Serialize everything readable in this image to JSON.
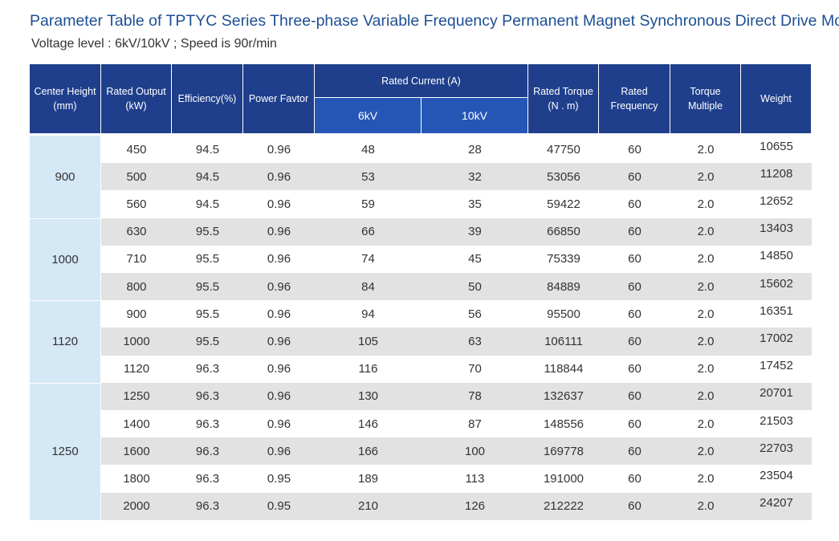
{
  "header": {
    "title": "Parameter Table of TPTYC Series Three-phase Variable Frequency Permanent Magnet Synchronous Direct Drive Motor",
    "subtitle": "Voltage level : 6kV/10kV ; Speed is 90r/min"
  },
  "table": {
    "columns": [
      [
        "Center  Height",
        "(mm)"
      ],
      [
        "Rated Output",
        "(kW)"
      ],
      [
        "Efficiency(%)"
      ],
      [
        "Power Favtor"
      ],
      [
        "Rated Current (A)"
      ],
      [
        "Rated Torque",
        "(N . m)"
      ],
      [
        "Rated",
        "Frequency"
      ],
      [
        "Torque",
        "Multiple"
      ],
      [
        "Weight"
      ]
    ],
    "subcolumns": [
      "6kV",
      "10kV"
    ],
    "groups": [
      {
        "center_height": "900",
        "rows": [
          [
            "450",
            "94.5",
            "0.96",
            "48",
            "28",
            "47750",
            "60",
            "2.0",
            "10655"
          ],
          [
            "500",
            "94.5",
            "0.96",
            "53",
            "32",
            "53056",
            "60",
            "2.0",
            "11208"
          ],
          [
            "560",
            "94.5",
            "0.96",
            "59",
            "35",
            "59422",
            "60",
            "2.0",
            "12652"
          ]
        ]
      },
      {
        "center_height": "1000",
        "rows": [
          [
            "630",
            "95.5",
            "0.96",
            "66",
            "39",
            "66850",
            "60",
            "2.0",
            "13403"
          ],
          [
            "710",
            "95.5",
            "0.96",
            "74",
            "45",
            "75339",
            "60",
            "2.0",
            "14850"
          ],
          [
            "800",
            "95.5",
            "0.96",
            "84",
            "50",
            "84889",
            "60",
            "2.0",
            "15602"
          ]
        ]
      },
      {
        "center_height": "1120",
        "rows": [
          [
            "900",
            "95.5",
            "0.96",
            "94",
            "56",
            "95500",
            "60",
            "2.0",
            "16351"
          ],
          [
            "1000",
            "95.5",
            "0.96",
            "105",
            "63",
            "106111",
            "60",
            "2.0",
            "17002"
          ],
          [
            "1120",
            "96.3",
            "0.96",
            "116",
            "70",
            "118844",
            "60",
            "2.0",
            "17452"
          ]
        ]
      },
      {
        "center_height": "1250",
        "rows": [
          [
            "1250",
            "96.3",
            "0.96",
            "130",
            "78",
            "132637",
            "60",
            "2.0",
            "20701"
          ],
          [
            "1400",
            "96.3",
            "0.96",
            "146",
            "87",
            "148556",
            "60",
            "2.0",
            "21503"
          ],
          [
            "1600",
            "96.3",
            "0.96",
            "166",
            "100",
            "169778",
            "60",
            "2.0",
            "22703"
          ],
          [
            "1800",
            "96.3",
            "0.95",
            "189",
            "113",
            "191000",
            "60",
            "2.0",
            "23504"
          ],
          [
            "2000",
            "96.3",
            "0.95",
            "210",
            "126",
            "212222",
            "60",
            "2.0",
            "24207"
          ]
        ]
      }
    ]
  }
}
